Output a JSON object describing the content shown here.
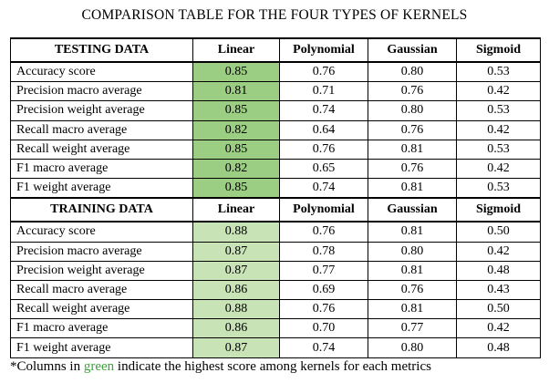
{
  "title": "COMPARISON TABLE FOR THE FOUR TYPES OF KERNELS",
  "columns": [
    "Linear",
    "Polynomial",
    "Gaussian",
    "Sigmoid"
  ],
  "highlight_colors": {
    "testing": "#9bce82",
    "training": "#c8e3b6",
    "footnote_green": "#3aa33a"
  },
  "sections": [
    {
      "key": "testing",
      "header": "TESTING DATA",
      "rows": [
        {
          "metric": "Accuracy score",
          "values": [
            "0.85",
            "0.76",
            "0.80",
            "0.53"
          ]
        },
        {
          "metric": "Precision macro average",
          "values": [
            "0.81",
            "0.71",
            "0.76",
            "0.42"
          ]
        },
        {
          "metric": "Precision weight average",
          "values": [
            "0.85",
            "0.74",
            "0.80",
            "0.53"
          ]
        },
        {
          "metric": "Recall macro average",
          "values": [
            "0.82",
            "0.64",
            "0.76",
            "0.42"
          ]
        },
        {
          "metric": "Recall weight average",
          "values": [
            "0.85",
            "0.76",
            "0.81",
            "0.53"
          ]
        },
        {
          "metric": "F1 macro average",
          "values": [
            "0.82",
            "0.65",
            "0.76",
            "0.42"
          ]
        },
        {
          "metric": "F1 weight average",
          "values": [
            "0.85",
            "0.74",
            "0.81",
            "0.53"
          ]
        }
      ]
    },
    {
      "key": "training",
      "header": "TRAINING DATA",
      "rows": [
        {
          "metric": "Accuracy score",
          "values": [
            "0.88",
            "0.76",
            "0.81",
            "0.50"
          ]
        },
        {
          "metric": "Precision macro average",
          "values": [
            "0.87",
            "0.78",
            "0.80",
            "0.42"
          ]
        },
        {
          "metric": "Precision weight average",
          "values": [
            "0.87",
            "0.77",
            "0.81",
            "0.48"
          ]
        },
        {
          "metric": "Recall macro average",
          "values": [
            "0.86",
            "0.69",
            "0.76",
            "0.43"
          ]
        },
        {
          "metric": "Recall weight average",
          "values": [
            "0.88",
            "0.76",
            "0.81",
            "0.50"
          ]
        },
        {
          "metric": "F1 macro average",
          "values": [
            "0.86",
            "0.70",
            "0.77",
            "0.42"
          ]
        },
        {
          "metric": "F1 weight average",
          "values": [
            "0.87",
            "0.74",
            "0.80",
            "0.48"
          ]
        }
      ]
    }
  ],
  "footnote": {
    "prefix": "*Columns in ",
    "highlight": "green",
    "suffix": " indicate the highest score among kernels for each metrics"
  }
}
